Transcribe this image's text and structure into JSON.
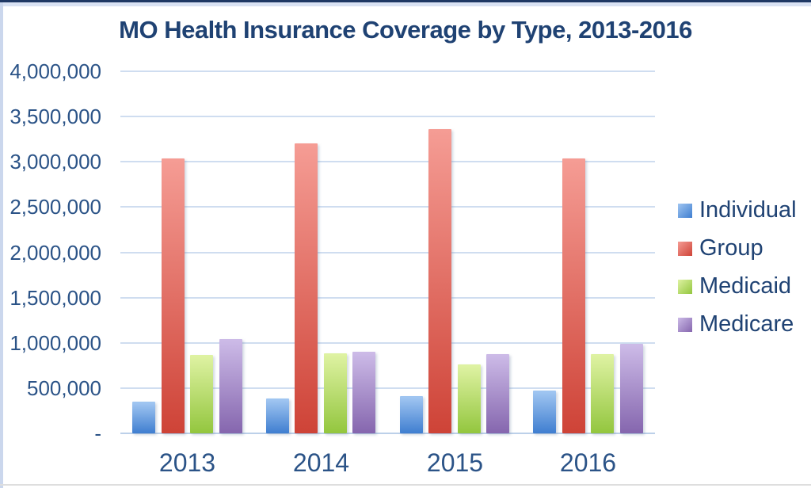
{
  "title": "MO Health Insurance Coverage by Type, 2013-2016",
  "colors": {
    "title_text": "#1F4273",
    "axis_text": "#2B5387",
    "legend_text": "#1F4273",
    "gridline": "#CFDDF0",
    "baseline": "#BCD0E9",
    "border_top_navy": "#1F3864",
    "border_top_light": "#D9E2F3",
    "border_left_light": "#CBD7ED",
    "border_bottom_gray": "#DEDEDE",
    "individual": "#5B93DC",
    "group": "#E06055",
    "medicaid": "#B5D96A",
    "medicare": "#A58BCB"
  },
  "chart_data": {
    "type": "bar",
    "title": "MO Health Insurance Coverage by Type, 2013-2016",
    "xlabel": "",
    "ylabel": "",
    "categories": [
      "2013",
      "2014",
      "2015",
      "2016"
    ],
    "series": [
      {
        "name": "Individual",
        "values": [
          330000,
          370000,
          395000,
          455000
        ],
        "gradient_top": "#9FC5F1",
        "gradient_bottom": "#3F7ED0"
      },
      {
        "name": "Group",
        "values": [
          3020000,
          3190000,
          3340000,
          3020000
        ],
        "gradient_top": "#F59C94",
        "gradient_bottom": "#CE4337"
      },
      {
        "name": "Medicaid",
        "values": [
          850000,
          865000,
          745000,
          860000
        ],
        "gradient_top": "#DEF2A2",
        "gradient_bottom": "#93C63E"
      },
      {
        "name": "Medicare",
        "values": [
          1020000,
          885000,
          855000,
          975000
        ],
        "gradient_top": "#CCBAE7",
        "gradient_bottom": "#8566AE"
      }
    ],
    "ylim": [
      0,
      4000000
    ],
    "ytick_interval": 500000,
    "ytick_labels_top_to_bottom": [
      "4,000,000",
      "3,500,000",
      "3,000,000",
      "2,500,000",
      "2,000,000",
      "1,500,000",
      "1,000,000",
      "500,000",
      "-"
    ],
    "grid": true,
    "legend_position": "right",
    "legend_entries": [
      "Individual",
      "Group",
      "Medicaid",
      "Medicare"
    ]
  }
}
